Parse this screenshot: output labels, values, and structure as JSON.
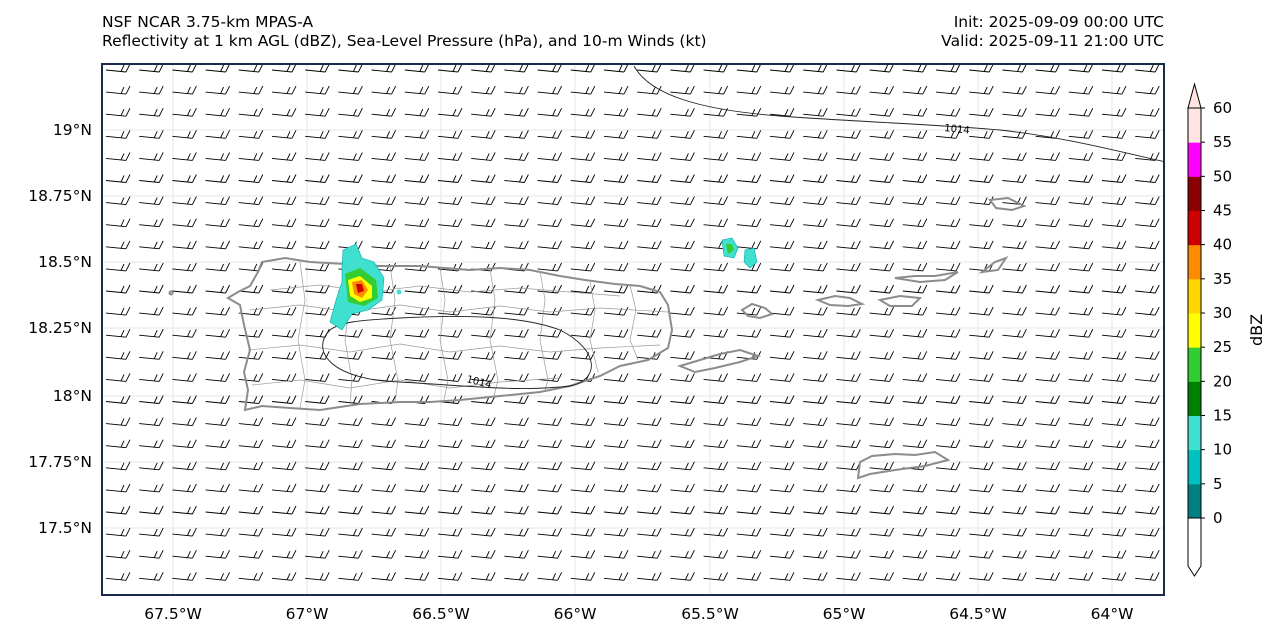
{
  "header": {
    "left_line1": "NSF NCAR 3.75-km MPAS-A",
    "left_line2": "Reflectivity at 1 km AGL (dBZ), Sea-Level Pressure (hPa), and 10-m Winds (kt)",
    "right_line1": "Init: 2025-09-09 00:00 UTC",
    "right_line2": "Valid: 2025-09-11 21:00 UTC"
  },
  "axes": {
    "lon_labels": [
      "67.5°W",
      "67°W",
      "66.5°W",
      "66°W",
      "65.5°W",
      "65°W",
      "64.5°W",
      "64°W"
    ],
    "lat_labels": [
      "19°N",
      "18.75°N",
      "18.5°N",
      "18.25°N",
      "18°N",
      "17.75°N",
      "17.5°N"
    ]
  },
  "isobars": [
    {
      "label": "1014"
    },
    {
      "label": "1014"
    }
  ],
  "colorbar": {
    "label": "dBZ",
    "ticks": [
      "0",
      "5",
      "10",
      "15",
      "20",
      "25",
      "30",
      "35",
      "40",
      "45",
      "50",
      "55",
      "60"
    ],
    "colors": [
      "#008080",
      "#00c0c0",
      "#40e0d0",
      "#008000",
      "#32cd32",
      "#ffff00",
      "#ffd700",
      "#ff8c00",
      "#cc0000",
      "#8b0000",
      "#ff00ff",
      "#ffe4e1"
    ]
  }
}
